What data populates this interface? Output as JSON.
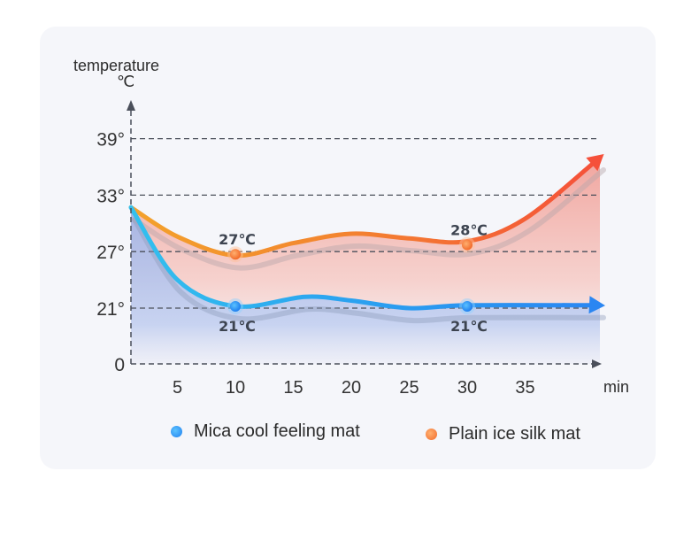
{
  "chart_data": {
    "type": "line",
    "title": "",
    "ylabel": "temperature",
    "yunit": "℃",
    "xlabel": "min",
    "x_ticks": [
      5,
      10,
      15,
      20,
      25,
      30,
      35
    ],
    "x_tick_labels": [
      "5",
      "10",
      "15",
      "20",
      "25",
      "30",
      "35"
    ],
    "y_ticks": [
      0,
      21,
      27,
      33,
      39
    ],
    "y_tick_labels": [
      "0",
      "21°",
      "27°",
      "33°",
      "39°"
    ],
    "xlim": [
      1,
      41
    ],
    "grid": "horizontal-dashed",
    "legend_position": "bottom",
    "series": [
      {
        "name": "Mica cool feeling mat",
        "color": "#2f8ff0",
        "color_start": "#33c0ee",
        "x": [
          1,
          5,
          10,
          16,
          20,
          25,
          30,
          41
        ],
        "values": [
          31.7,
          24.0,
          21.2,
          22.2,
          21.8,
          21.0,
          21.3,
          21.3
        ],
        "markers": [
          {
            "x": 10,
            "value": 21,
            "label": "21℃"
          },
          {
            "x": 30,
            "value": 21,
            "label": "21℃"
          }
        ]
      },
      {
        "name": "Plain ice silk mat",
        "color": "#f5603a",
        "color_start": "#f3a22c",
        "x": [
          1,
          5,
          10,
          15,
          20,
          25,
          30,
          35,
          41
        ],
        "values": [
          31.7,
          28.6,
          26.6,
          27.9,
          28.9,
          28.4,
          28.1,
          30.5,
          37.0
        ],
        "markers": [
          {
            "x": 10,
            "value": 27,
            "label": "27℃"
          },
          {
            "x": 30,
            "value": 28,
            "label": "28℃"
          }
        ]
      }
    ]
  },
  "labels": {
    "y_title": "temperature",
    "y_unit": "℃",
    "x_unit": "min"
  },
  "legend": [
    {
      "label": "Mica cool feeling mat",
      "color": "#2f8ff0"
    },
    {
      "label": "Plain ice silk mat",
      "color": "#f5803a"
    }
  ]
}
